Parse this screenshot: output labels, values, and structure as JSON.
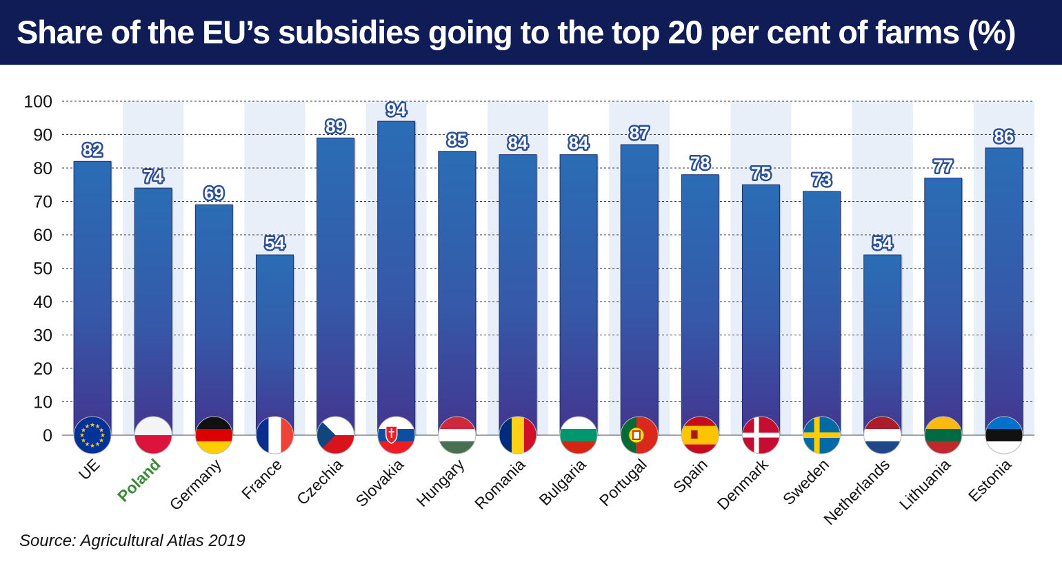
{
  "title": "Share of the EU’s subsidies going to the top 20 per cent of farms (%)",
  "source": "Source: Agricultural Atlas 2019",
  "colors": {
    "title_bg": "#0f1c56",
    "bar_top": "#2a6db5",
    "bar_bottom": "#43358f",
    "highlight_label": "#3e8a3b",
    "stripe": "#e9eff8"
  },
  "chart_data": {
    "type": "bar",
    "title": "Share of the EU’s subsidies going to the top 20 per cent of farms (%)",
    "xlabel": "",
    "ylabel": "",
    "ylim": [
      0,
      100
    ],
    "yticks": [
      0,
      10,
      20,
      30,
      40,
      50,
      60,
      70,
      80,
      90,
      100
    ],
    "grid": true,
    "categories": [
      "UE",
      "Poland",
      "Germany",
      "France",
      "Czechia",
      "Slovakia",
      "Hungary",
      "Romania",
      "Bulgaria",
      "Portugal",
      "Spain",
      "Denmark",
      "Sweden",
      "Netherlands",
      "Lithuania",
      "Estonia"
    ],
    "values": [
      82,
      74,
      69,
      54,
      89,
      94,
      85,
      84,
      84,
      87,
      78,
      75,
      73,
      54,
      77,
      86
    ],
    "highlight": "Poland",
    "flags": [
      "eu-flag-icon",
      "poland-flag-icon",
      "germany-flag-icon",
      "france-flag-icon",
      "czechia-flag-icon",
      "slovakia-flag-icon",
      "hungary-flag-icon",
      "romania-flag-icon",
      "bulgaria-flag-icon",
      "portugal-flag-icon",
      "spain-flag-icon",
      "denmark-flag-icon",
      "sweden-flag-icon",
      "netherlands-flag-icon",
      "lithuania-flag-icon",
      "estonia-flag-icon"
    ]
  }
}
